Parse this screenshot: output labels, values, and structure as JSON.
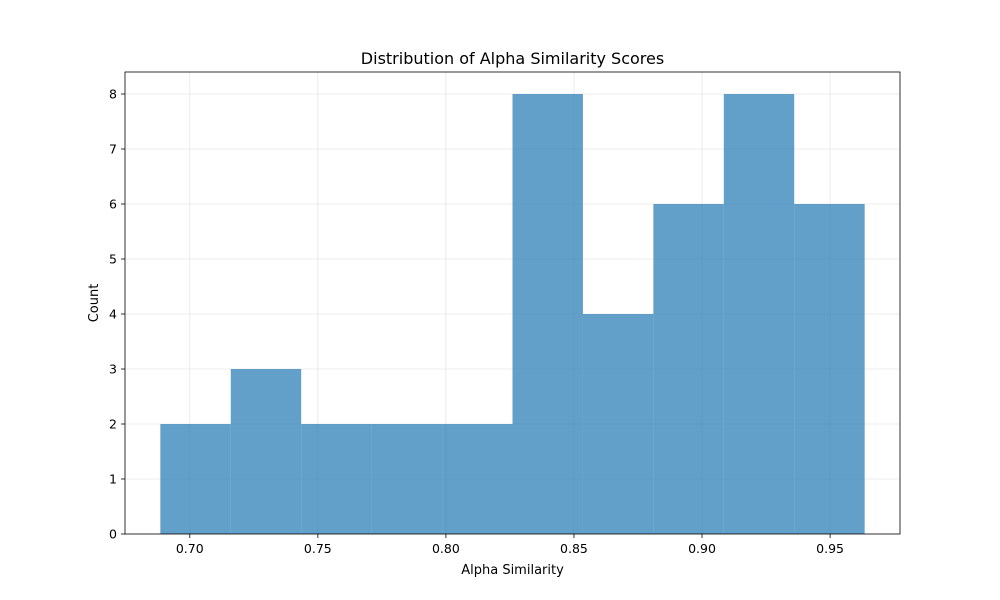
{
  "chart_data": {
    "type": "bar",
    "title": "Distribution of Alpha Similarity Scores",
    "xlabel": "Alpha Similarity",
    "ylabel": "Count",
    "bin_edges": [
      0.6885,
      0.716,
      0.7435,
      0.771,
      0.7985,
      0.826,
      0.8535,
      0.881,
      0.9085,
      0.936,
      0.9635
    ],
    "values": [
      2,
      3,
      2,
      2,
      2,
      8,
      4,
      6,
      8,
      6
    ],
    "xlim": [
      0.6747,
      0.9773
    ],
    "ylim": [
      0,
      8.4
    ],
    "xticks": [
      0.7,
      0.75,
      0.8,
      0.85,
      0.9,
      0.95
    ],
    "xtick_labels": [
      "0.70",
      "0.75",
      "0.80",
      "0.85",
      "0.90",
      "0.95"
    ],
    "yticks": [
      0,
      1,
      2,
      3,
      4,
      5,
      6,
      7,
      8
    ],
    "ytick_labels": [
      "0",
      "1",
      "2",
      "3",
      "4",
      "5",
      "6",
      "7",
      "8"
    ],
    "grid": true,
    "colors": {
      "bar": "#1f77b4",
      "bar_opacity": 0.7
    }
  }
}
